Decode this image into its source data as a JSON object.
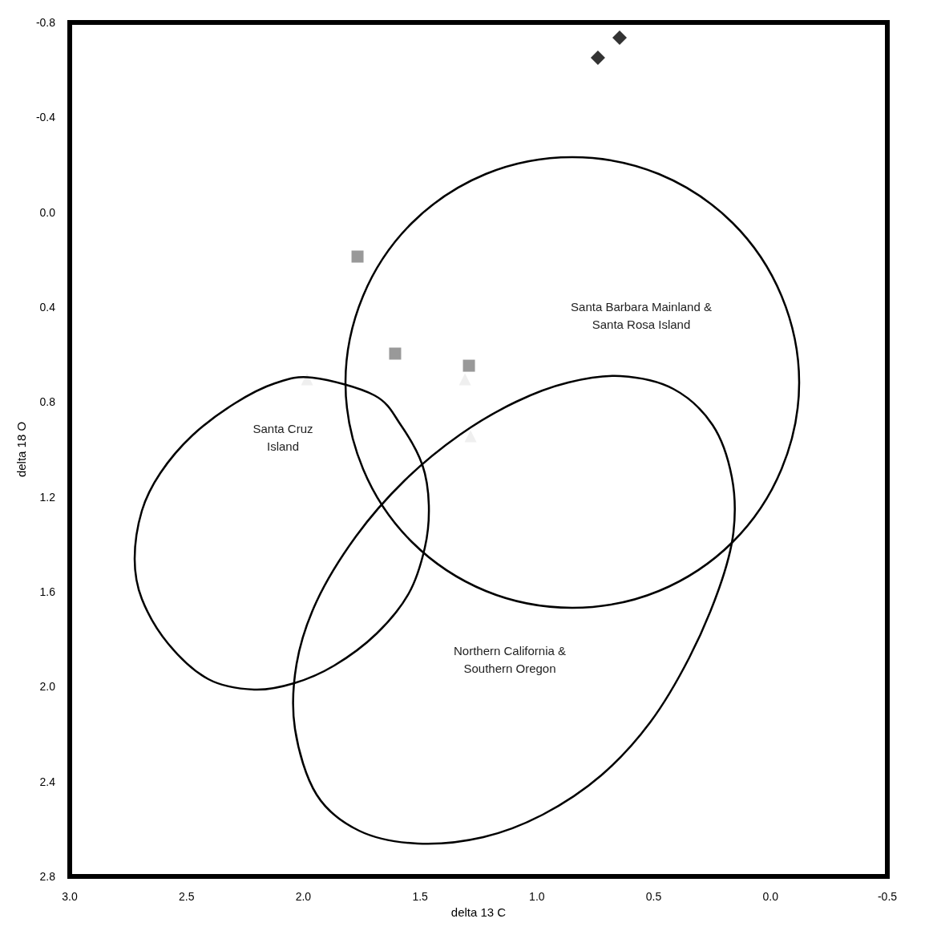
{
  "chart_data": {
    "type": "scatter",
    "xlabel": "delta 13 C",
    "ylabel": "delta 18 O",
    "xlim": [
      3.0,
      -0.5
    ],
    "ylim": [
      2.8,
      -0.8
    ],
    "xticks": [
      {
        "value": 3.0,
        "label": "3.0"
      },
      {
        "value": 2.5,
        "label": "2.5"
      },
      {
        "value": 2.0,
        "label": "2.0"
      },
      {
        "value": 1.5,
        "label": "1.5"
      },
      {
        "value": 1.0,
        "label": "1.0"
      },
      {
        "value": 0.5,
        "label": "0.5"
      },
      {
        "value": 0.0,
        "label": "0.0"
      },
      {
        "value": -0.5,
        "label": "-0.5"
      }
    ],
    "yticks": [
      {
        "value": -0.8,
        "label": "-0.8"
      },
      {
        "value": -0.4,
        "label": "-0.4"
      },
      {
        "value": 0.0,
        "label": "0.0"
      },
      {
        "value": 0.4,
        "label": "0.4"
      },
      {
        "value": 0.8,
        "label": "0.8"
      },
      {
        "value": 1.2,
        "label": "1.2"
      },
      {
        "value": 1.6,
        "label": "1.6"
      },
      {
        "value": 2.0,
        "label": "2.0"
      },
      {
        "value": 2.4,
        "label": "2.4"
      },
      {
        "value": 2.8,
        "label": "2.8"
      }
    ],
    "grid": false,
    "series": [
      {
        "type": "scatter",
        "marker": "diamond",
        "color": "#000000",
        "x": [
          0.739,
          0.646
        ],
        "values": [
          -0.651,
          -0.736
        ]
      },
      {
        "type": "scatter",
        "marker": "square",
        "color": "#808080",
        "x": [
          1.768,
          1.607,
          1.291
        ],
        "values": [
          0.187,
          0.596,
          0.647
        ]
      },
      {
        "type": "scatter",
        "marker": "triangle",
        "color": "#ebebeb",
        "x": [
          1.984,
          1.308,
          1.284
        ],
        "values": [
          0.704,
          0.704,
          0.944
        ]
      }
    ],
    "annotations": [
      "Santa Barbara Mainland &\nSanta Rosa Island",
      "Santa Cruz\nIsland",
      "Northern California &\nSouthern Oregon"
    ]
  }
}
